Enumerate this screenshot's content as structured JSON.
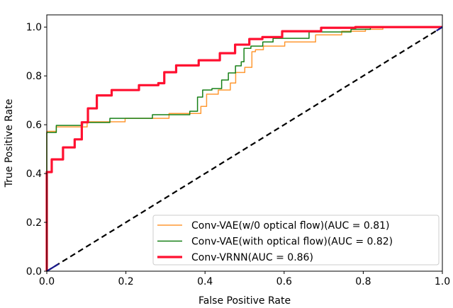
{
  "chart_data": {
    "type": "line",
    "xlabel": "False Positive Rate",
    "ylabel": "True Positive Rate",
    "xlim": [
      0,
      1
    ],
    "ylim": [
      0,
      1.05
    ],
    "xticks": [
      "0.0",
      "0.2",
      "0.4",
      "0.6",
      "0.8",
      "1.0"
    ],
    "yticks": [
      "0.0",
      "0.2",
      "0.4",
      "0.6",
      "0.8",
      "1.0"
    ],
    "grid": false,
    "legend_position": "lower-right",
    "series": [
      {
        "name": "Conv-VAE(w/0 optical flow)(AUC = 0.81)",
        "color": "#ff9933",
        "points": [
          [
            0,
            0
          ],
          [
            0,
            0.573
          ],
          [
            0.048,
            0.591
          ],
          [
            0.156,
            0.612
          ],
          [
            0.24,
            0.626
          ],
          [
            0.378,
            0.646
          ],
          [
            0.401,
            0.675
          ],
          [
            0.407,
            0.725
          ],
          [
            0.46,
            0.742
          ],
          [
            0.468,
            0.771
          ],
          [
            0.487,
            0.814
          ],
          [
            0.514,
            0.835
          ],
          [
            0.523,
            0.899
          ],
          [
            0.532,
            0.907
          ],
          [
            0.563,
            0.922
          ],
          [
            0.64,
            0.939
          ],
          [
            0.719,
            0.968
          ],
          [
            0.772,
            0.983
          ],
          [
            0.839,
            0.991
          ],
          [
            0.86,
            1.0
          ],
          [
            1,
            1
          ]
        ]
      },
      {
        "name": "Conv-VAE(with optical flow)(AUC = 0.82)",
        "color": "#178017",
        "points": [
          [
            0,
            0
          ],
          [
            0,
            0.568
          ],
          [
            0.048,
            0.597
          ],
          [
            0.133,
            0.609
          ],
          [
            0.186,
            0.626
          ],
          [
            0.348,
            0.641
          ],
          [
            0.375,
            0.655
          ],
          [
            0.387,
            0.713
          ],
          [
            0.401,
            0.742
          ],
          [
            0.434,
            0.748
          ],
          [
            0.45,
            0.783
          ],
          [
            0.468,
            0.812
          ],
          [
            0.486,
            0.841
          ],
          [
            0.497,
            0.858
          ],
          [
            0.5,
            0.913
          ],
          [
            0.532,
            0.922
          ],
          [
            0.56,
            0.939
          ],
          [
            0.584,
            0.954
          ],
          [
            0.742,
            0.98
          ],
          [
            0.796,
            0.991
          ],
          [
            0.84,
            1.0
          ],
          [
            1,
            1
          ]
        ]
      },
      {
        "name": "Conv-VRNN(AUC = 0.86)",
        "color": "#ff1030",
        "points": [
          [
            0,
            0
          ],
          [
            0,
            0.406
          ],
          [
            0.025,
            0.458
          ],
          [
            0.057,
            0.507
          ],
          [
            0.084,
            0.54
          ],
          [
            0.093,
            0.61
          ],
          [
            0.115,
            0.667
          ],
          [
            0.138,
            0.72
          ],
          [
            0.19,
            0.742
          ],
          [
            0.276,
            0.762
          ],
          [
            0.288,
            0.77
          ],
          [
            0.306,
            0.815
          ],
          [
            0.348,
            0.843
          ],
          [
            0.42,
            0.864
          ],
          [
            0.455,
            0.893
          ],
          [
            0.497,
            0.928
          ],
          [
            0.527,
            0.951
          ],
          [
            0.563,
            0.959
          ],
          [
            0.627,
            0.983
          ],
          [
            0.76,
            0.997
          ],
          [
            0.8,
            1.0
          ],
          [
            1,
            1
          ]
        ]
      },
      {
        "color": "#000000",
        "dashed": true,
        "points": [
          [
            0,
            0
          ],
          [
            1,
            1
          ]
        ]
      }
    ]
  }
}
